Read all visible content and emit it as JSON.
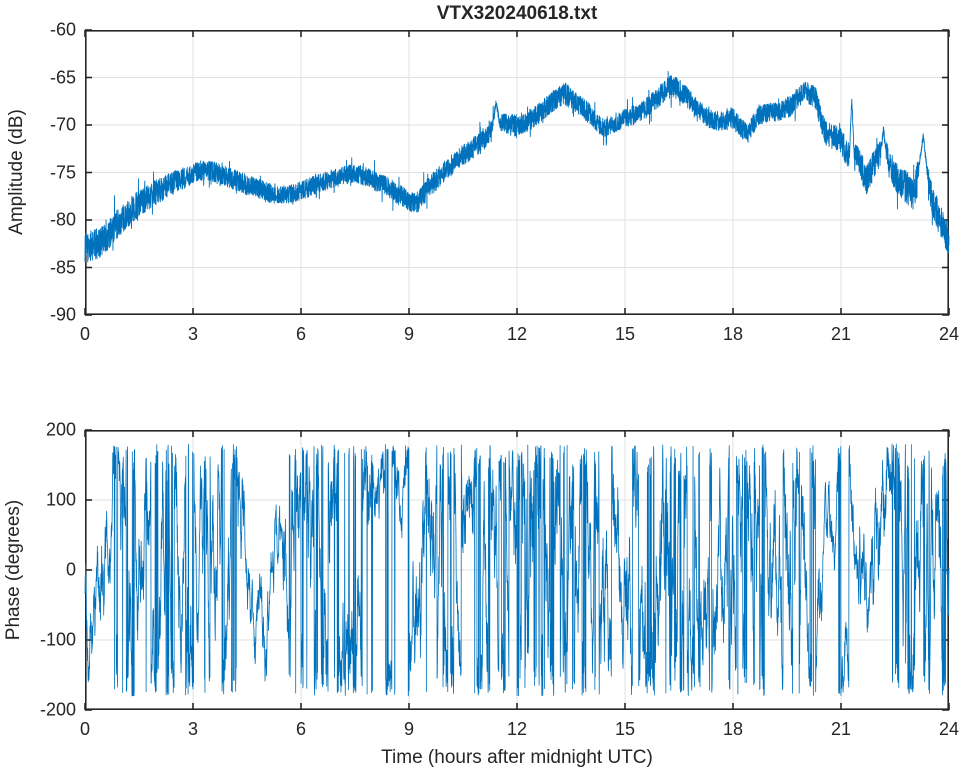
{
  "figure": {
    "title": "VTX320240618.txt",
    "xlabel": "Time (hours after midnight UTC)",
    "line_color": "#0072BD",
    "axis_color": "#262626",
    "grid_color": "#e0e0e0",
    "background": "#ffffff"
  },
  "chart_data": [
    {
      "type": "line",
      "title": "VTX320240618.txt",
      "xlabel": "",
      "ylabel": "Amplitude (dB)",
      "xlim": [
        0,
        24
      ],
      "ylim": [
        -90,
        -60
      ],
      "xticks": [
        0,
        3,
        6,
        9,
        12,
        15,
        18,
        21,
        24
      ],
      "yticks": [
        -90,
        -85,
        -80,
        -75,
        -70,
        -65,
        -60
      ],
      "grid": true,
      "legend": "none",
      "line_color": "#0072BD",
      "description": "Noisy received-signal amplitude band (~2-3 dB wide) vs time; control points give the band mean, noise_halfwidth the half-width of the noise band, spikes are narrow upward excursions.",
      "series": [
        {
          "name": "amplitude",
          "x": [
            0,
            0.5,
            1.0,
            1.5,
            2.0,
            2.5,
            3.0,
            3.3,
            3.6,
            4.0,
            4.5,
            5.0,
            5.4,
            5.8,
            6.2,
            6.6,
            7.0,
            7.4,
            7.7,
            8.0,
            8.4,
            8.7,
            9.0,
            9.2,
            9.5,
            10.0,
            10.5,
            11.0,
            11.3,
            11.5,
            11.8,
            12.0,
            12.3,
            12.6,
            13.0,
            13.3,
            13.6,
            14.0,
            14.4,
            14.7,
            15.0,
            15.3,
            15.6,
            16.0,
            16.3,
            16.6,
            17.0,
            17.3,
            17.6,
            18.0,
            18.4,
            18.7,
            19.0,
            19.3,
            19.6,
            20.0,
            20.3,
            20.45,
            20.6,
            21.0,
            21.15,
            21.3,
            21.5,
            21.7,
            22.0,
            22.2,
            22.5,
            23.0,
            23.2,
            23.4,
            23.6,
            24.0
          ],
          "y": [
            -83.0,
            -82.2,
            -80.0,
            -78.2,
            -77.0,
            -76.0,
            -75.2,
            -74.7,
            -75.0,
            -75.6,
            -76.3,
            -77.0,
            -77.4,
            -77.2,
            -76.6,
            -76.0,
            -75.5,
            -75.1,
            -75.3,
            -75.8,
            -76.5,
            -77.3,
            -78.0,
            -78.3,
            -76.8,
            -74.8,
            -73.2,
            -71.8,
            -70.5,
            -69.8,
            -70.0,
            -70.0,
            -69.6,
            -68.8,
            -67.5,
            -66.6,
            -67.5,
            -68.8,
            -70.3,
            -69.8,
            -69.3,
            -68.9,
            -68.2,
            -66.8,
            -65.8,
            -66.6,
            -68.2,
            -69.3,
            -69.6,
            -69.3,
            -71.0,
            -69.0,
            -68.7,
            -68.6,
            -68.0,
            -66.4,
            -67.2,
            -69.5,
            -71.0,
            -71.5,
            -73.0,
            -73.3,
            -73.6,
            -75.8,
            -73.4,
            -72.8,
            -75.4,
            -77.2,
            -74.8,
            -75.8,
            -78.6,
            -82.3
          ],
          "noise_halfwidth": [
            1.6,
            1.6,
            1.5,
            1.4,
            1.3,
            1.2,
            1.1,
            1.1,
            1.1,
            1.1,
            1.1,
            1.1,
            1.0,
            1.0,
            1.0,
            1.0,
            1.0,
            1.0,
            1.0,
            1.0,
            1.0,
            1.1,
            1.1,
            1.1,
            1.1,
            1.1,
            1.1,
            1.2,
            1.3,
            1.2,
            1.1,
            1.2,
            1.1,
            1.1,
            1.1,
            1.2,
            1.1,
            1.1,
            1.0,
            1.0,
            1.0,
            1.0,
            1.1,
            1.1,
            1.2,
            1.1,
            1.0,
            1.0,
            1.0,
            1.1,
            1.0,
            1.0,
            1.0,
            1.0,
            1.1,
            1.1,
            1.2,
            1.3,
            1.3,
            1.4,
            1.4,
            1.4,
            1.5,
            1.6,
            1.5,
            1.5,
            1.6,
            1.8,
            1.9,
            1.8,
            1.7,
            1.6
          ],
          "spikes": [
            {
              "x": 11.42,
              "y": -67.2,
              "w": 0.12
            },
            {
              "x": 21.3,
              "y": -66.8,
              "w": 0.07
            },
            {
              "x": 22.18,
              "y": -70.0,
              "w": 0.09
            },
            {
              "x": 23.28,
              "y": -70.6,
              "w": 0.15
            }
          ]
        }
      ]
    },
    {
      "type": "line",
      "title": "",
      "xlabel": "Time (hours after midnight UTC)",
      "ylabel": "Phase (degrees)",
      "xlim": [
        0,
        24
      ],
      "ylim": [
        -200,
        200
      ],
      "xticks": [
        0,
        3,
        6,
        9,
        12,
        15,
        18,
        21,
        24
      ],
      "yticks": [
        -200,
        -100,
        0,
        100,
        200
      ],
      "grid": true,
      "legend": "none",
      "line_color": "#0072BD",
      "description": "Wrapped phase (random-walk wrapped to +/-180 deg) vs time; volatility gives the walk step amplitude (degrees per sample) for each half-hour bin, controlling how densely the trace wraps.",
      "series": [
        {
          "name": "phase",
          "wrap_range": [
            -180,
            180
          ],
          "start": -15,
          "volatility_bin_hours": 0.5,
          "volatility": [
            40,
            35,
            55,
            45,
            60,
            55,
            55,
            50,
            45,
            32,
            30,
            50,
            60,
            55,
            50,
            42,
            28,
            26,
            50,
            60,
            55,
            45,
            60,
            45,
            80,
            75,
            70,
            65,
            60,
            55,
            60,
            70,
            75,
            65,
            55,
            50,
            60,
            55,
            60,
            65,
            38,
            30,
            28,
            38,
            50,
            60,
            65,
            60
          ]
        }
      ]
    }
  ]
}
